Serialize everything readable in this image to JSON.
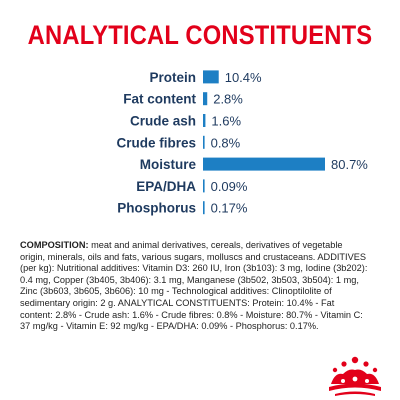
{
  "title": "ANALYTICAL CONSTITUENTS",
  "chart_data": {
    "type": "bar",
    "orientation": "horizontal",
    "categories": [
      "Protein",
      "Fat content",
      "Crude ash",
      "Crude fibres",
      "Moisture",
      "EPA/DHA",
      "Phosphorus"
    ],
    "values": [
      10.4,
      2.8,
      1.6,
      0.8,
      80.7,
      0.09,
      0.17
    ],
    "value_labels": [
      "10.4%",
      "2.8%",
      "1.6%",
      "0.8%",
      "80.7%",
      "0.09%",
      "0.17%"
    ],
    "unit": "%",
    "xlim": [
      0,
      80.7
    ],
    "bar_color": "#1d7fc4",
    "grid": false
  },
  "composition": {
    "heading": "COMPOSITION:",
    "text": " meat and animal derivatives, cereals, derivatives of vegetable origin, minerals, oils and fats, various sugars, molluscs and crustaceans. ADDITIVES (per kg): Nutritional additives: Vitamin D3: 260 IU, Iron (3b103): 3 mg, Iodine (3b202): 0.4 mg, Copper (3b405, 3b406): 3.1 mg, Manganese (3b502, 3b503, 3b504): 1 mg, Zinc (3b603, 3b605, 3b606): 10 mg - Technological additives: Clinoptilolite of sedimentary origin: 2 g. ANALYTICAL CONSTITUENTS: Protein: 10.4% - Fat content: 2.8% - Crude ash: 1.6% - Crude fibres: 0.8% - Moisture: 80.7% - Vitamin C: 37 mg/kg - Vitamin E: 92 mg/kg - EPA/DHA: 0.09% - Phosphorus: 0.17%."
  },
  "colors": {
    "brand_red": "#e2001a",
    "label_navy": "#1e3a5f",
    "bar_blue": "#1d7fc4"
  },
  "logo": {
    "icon": "crown-logo-icon"
  }
}
